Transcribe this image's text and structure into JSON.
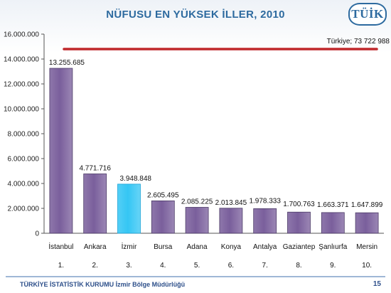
{
  "header": {
    "title": "NÜFUSU EN YÜKSEK İLLER, 2010",
    "logo_text": "TÜİK"
  },
  "footer": {
    "organization": "TÜRKİYE İSTATİSTİK KURUMU İzmir Bölge Müdürlüğü",
    "page_number": "15"
  },
  "colors": {
    "bar": "#7a5f9c",
    "bar_highlight": "#35c6f4",
    "reference_line": "#c0282c",
    "title": "#2d6a9f"
  },
  "chart_data": {
    "type": "bar",
    "title": "NÜFUSU EN YÜKSEK İLLER, 2010",
    "categories": [
      "İstanbul",
      "Ankara",
      "İzmir",
      "Bursa",
      "Adana",
      "Konya",
      "Antalya",
      "Gaziantep",
      "Şanlıurfa",
      "Mersin"
    ],
    "ranks": [
      "1.",
      "2.",
      "3.",
      "4.",
      "5.",
      "6.",
      "7.",
      "8.",
      "9.",
      "10."
    ],
    "values": [
      13255685,
      4771716,
      3948848,
      2605495,
      2085225,
      2013845,
      1978333,
      1700763,
      1663371,
      1647899
    ],
    "value_labels": [
      "13.255.685",
      "4.771.716",
      "3.948.848",
      "2.605.495",
      "2.085.225",
      "2.013.845",
      "1.978.333",
      "1.700.763",
      "1.663.371",
      "1.647.899"
    ],
    "highlight_category": "İzmir",
    "reference_line": {
      "value": 14800000,
      "label": "Türkiye; 73 722 988"
    },
    "ylim": [
      0,
      16000000
    ],
    "y_ticks": [
      0,
      2000000,
      4000000,
      6000000,
      8000000,
      10000000,
      12000000,
      14000000,
      16000000
    ],
    "y_tick_labels": [
      "0",
      "2.000.000",
      "4.000.000",
      "6.000.000",
      "8.000.000",
      "10.000.000",
      "12.000.000",
      "14.000.000",
      "16.000.000"
    ],
    "xlabel": "",
    "ylabel": "",
    "grid": false,
    "legend": "none"
  }
}
